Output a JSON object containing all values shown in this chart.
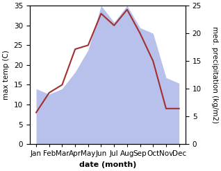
{
  "months": [
    "Jan",
    "Feb",
    "Mar",
    "Apr",
    "May",
    "Jun",
    "Jul",
    "Aug",
    "Sep",
    "Oct",
    "Nov",
    "Dec"
  ],
  "temperature": [
    8,
    13,
    15,
    24,
    25,
    33,
    30,
    34,
    28,
    21,
    9,
    9
  ],
  "precipitation": [
    10,
    9,
    10,
    13,
    17,
    25,
    22,
    25,
    21,
    20,
    12,
    11
  ],
  "temp_color": "#a03030",
  "precip_color": "#b8c0ec",
  "temp_ylim": [
    0,
    35
  ],
  "precip_ylim": [
    0,
    25
  ],
  "temp_yticks": [
    0,
    5,
    10,
    15,
    20,
    25,
    30,
    35
  ],
  "precip_yticks": [
    0,
    5,
    10,
    15,
    20,
    25
  ],
  "xlabel": "date (month)",
  "ylabel_left": "max temp (C)",
  "ylabel_right": "med. precipitation (kg/m2)",
  "label_fontsize": 8,
  "tick_fontsize": 7.5
}
